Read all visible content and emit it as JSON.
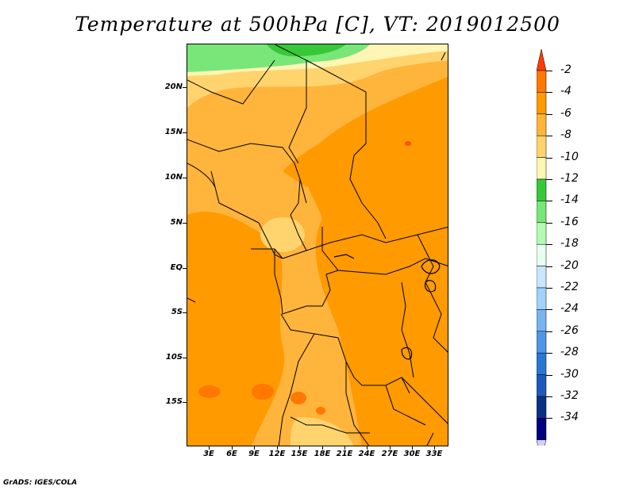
{
  "title": "Temperature at 500hPa [C], VT: 2019012500",
  "credit": "GrADS: IGES/COLA",
  "lat_labels": [
    "20N",
    "15N",
    "10N",
    "5N",
    "EQ",
    "5S",
    "10S",
    "15S"
  ],
  "lon_labels": [
    "3E",
    "6E",
    "9E",
    "12E",
    "15E",
    "18E",
    "21E",
    "24E",
    "27E",
    "30E",
    "33E"
  ],
  "colorbar": {
    "labels": [
      "-2",
      "-4",
      "-6",
      "-8",
      "-10",
      "-12",
      "-14",
      "-16",
      "-18",
      "-20",
      "-22",
      "-24",
      "-26",
      "-28",
      "-30",
      "-32",
      "-34"
    ],
    "colors": [
      "#ff3c00",
      "#ff7800",
      "#ff9a00",
      "#ffb43c",
      "#ffd46e",
      "#fff5b4",
      "#37c837",
      "#78e678",
      "#b4fab4",
      "#e6fff0",
      "#c8e6ff",
      "#a0d2fa",
      "#78b4f0",
      "#5096e6",
      "#2878d2",
      "#1e5abe",
      "#0a3282",
      "#000080",
      "#d2d2ff"
    ]
  }
}
